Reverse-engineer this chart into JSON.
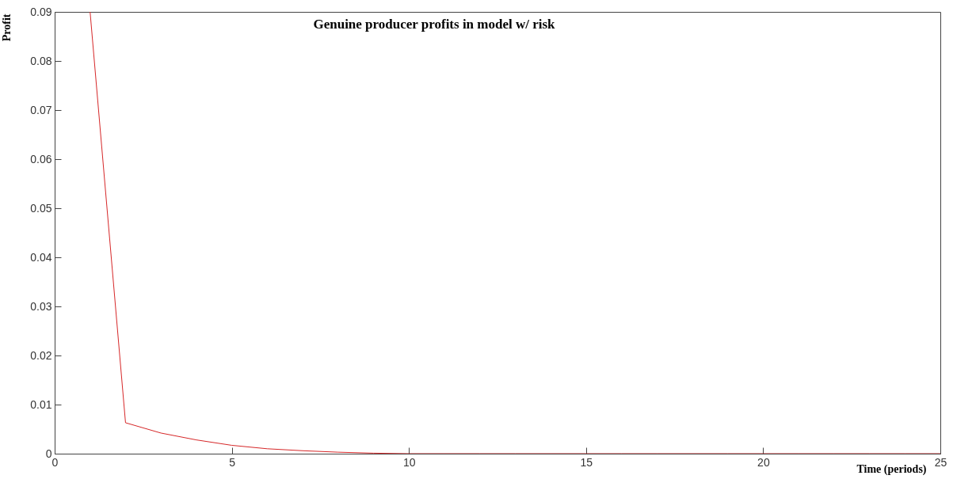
{
  "chart_data": {
    "type": "line",
    "title": "Genuine producer profits in model w/ risk",
    "xlabel": "Time (periods)",
    "ylabel": "Profit",
    "x": [
      1,
      2,
      3,
      4,
      5,
      6,
      7,
      8,
      9,
      10,
      11,
      12,
      13,
      14,
      15,
      16,
      17,
      18,
      19,
      20,
      21,
      22,
      23,
      24,
      25
    ],
    "series": [
      {
        "color": "#d62728",
        "values": [
          0.09,
          0.0063,
          0.0042,
          0.0028,
          0.0017,
          0.001,
          0.0006,
          0.0003,
          0.0001,
          0,
          0,
          0,
          0,
          0,
          0,
          0,
          0,
          0,
          0,
          0,
          0,
          0,
          0,
          0,
          0
        ]
      }
    ],
    "xlim": [
      0,
      25
    ],
    "xticks": [
      0,
      5,
      10,
      15,
      20,
      25
    ],
    "ylim": [
      0,
      0.09
    ],
    "yticks": [
      0,
      0.01,
      0.02,
      0.03,
      0.04,
      0.05,
      0.06,
      0.07,
      0.08,
      0.09
    ],
    "grid": false,
    "legend": false,
    "marker": "none",
    "line_style": "solid"
  }
}
